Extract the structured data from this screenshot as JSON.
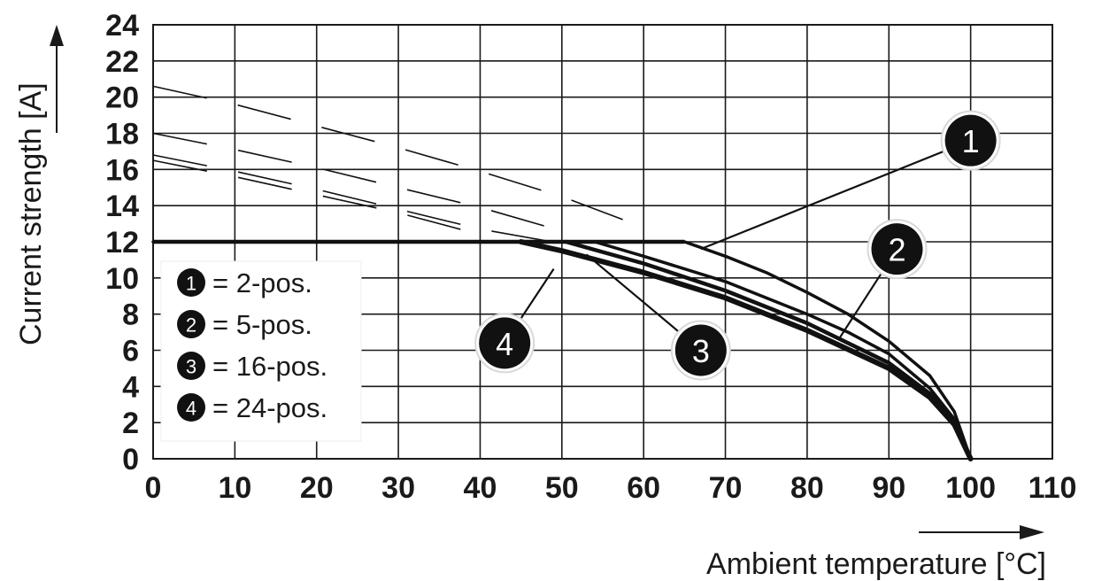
{
  "chart_data": {
    "type": "line",
    "title": "",
    "xlabel": "Ambient temperature [°C]",
    "ylabel": "Current strength [A]",
    "xlim": [
      0,
      110
    ],
    "ylim": [
      0,
      24
    ],
    "x_ticks": [
      0,
      10,
      20,
      30,
      40,
      50,
      60,
      70,
      80,
      90,
      100,
      110
    ],
    "y_ticks": [
      0,
      2,
      4,
      6,
      8,
      10,
      12,
      14,
      16,
      18,
      20,
      22,
      24
    ],
    "grid": true,
    "legend_position": "left",
    "limit_line": {
      "y": 12,
      "x_range": [
        0,
        65
      ]
    },
    "series": [
      {
        "name": "2-pos.",
        "badge": "1",
        "width": 3.5,
        "solid": [
          [
            0,
            12
          ],
          [
            65,
            12
          ],
          [
            70,
            11.2
          ],
          [
            75,
            10.3
          ],
          [
            80,
            9.2
          ],
          [
            85,
            8.0
          ],
          [
            90,
            6.5
          ],
          [
            95,
            4.6
          ],
          [
            98,
            2.6
          ],
          [
            100,
            0
          ]
        ],
        "dashed": [
          [
            0,
            20.6
          ],
          [
            10,
            19.6
          ],
          [
            20,
            18.4
          ],
          [
            30,
            17.2
          ],
          [
            40,
            15.9
          ],
          [
            50,
            14.5
          ],
          [
            60,
            12.8
          ]
        ]
      },
      {
        "name": "5-pos.",
        "badge": "2",
        "width": 3.5,
        "solid": [
          [
            54,
            12
          ],
          [
            60,
            11.2
          ],
          [
            70,
            9.8
          ],
          [
            80,
            8.0
          ],
          [
            85,
            7.0
          ],
          [
            90,
            5.8
          ],
          [
            95,
            3.9
          ],
          [
            98,
            2.2
          ],
          [
            100,
            0
          ]
        ],
        "dashed": [
          [
            0,
            18.0
          ],
          [
            10,
            17.1
          ],
          [
            20,
            16.1
          ],
          [
            30,
            15.0
          ],
          [
            40,
            13.9
          ],
          [
            50,
            12.6
          ]
        ]
      },
      {
        "name": "16-pos.",
        "badge": "3",
        "width": 4.5,
        "solid": [
          [
            50.5,
            12
          ],
          [
            60,
            10.8
          ],
          [
            70,
            9.3
          ],
          [
            80,
            7.5
          ],
          [
            90,
            5.3
          ],
          [
            95,
            3.6
          ],
          [
            98,
            2.0
          ],
          [
            100,
            0
          ]
        ],
        "dashed": [
          [
            0,
            16.8
          ],
          [
            10,
            15.9
          ],
          [
            20,
            14.9
          ],
          [
            30,
            13.8
          ],
          [
            40,
            12.7
          ],
          [
            50,
            11.9
          ]
        ]
      },
      {
        "name": "24-pos.",
        "badge": "4",
        "width": 6,
        "solid": [
          [
            45,
            12
          ],
          [
            50,
            11.5
          ],
          [
            60,
            10.3
          ],
          [
            70,
            8.9
          ],
          [
            80,
            7.1
          ],
          [
            90,
            5.0
          ],
          [
            95,
            3.4
          ],
          [
            98,
            1.9
          ],
          [
            100,
            0
          ]
        ],
        "dashed": [
          [
            0,
            16.5
          ],
          [
            10,
            15.6
          ],
          [
            20,
            14.6
          ],
          [
            30,
            13.6
          ],
          [
            40,
            12.4
          ]
        ]
      }
    ],
    "callouts": [
      {
        "badge": "1",
        "at": [
          100,
          17.6
        ],
        "leader_to": [
          67,
          11.6
        ]
      },
      {
        "badge": "2",
        "at": [
          91,
          11.6
        ],
        "leader_to": [
          84,
          6.7
        ]
      },
      {
        "badge": "3",
        "at": [
          67,
          6.0
        ],
        "leader_to": [
          53,
          11.3
        ]
      },
      {
        "badge": "4",
        "at": [
          43,
          6.4
        ],
        "leader_to": [
          49,
          10.5
        ]
      }
    ],
    "legend": [
      {
        "badge": "1",
        "label": "= 2-pos."
      },
      {
        "badge": "2",
        "label": "= 5-pos."
      },
      {
        "badge": "3",
        "label": "= 16-pos."
      },
      {
        "badge": "4",
        "label": "= 24-pos."
      }
    ]
  }
}
